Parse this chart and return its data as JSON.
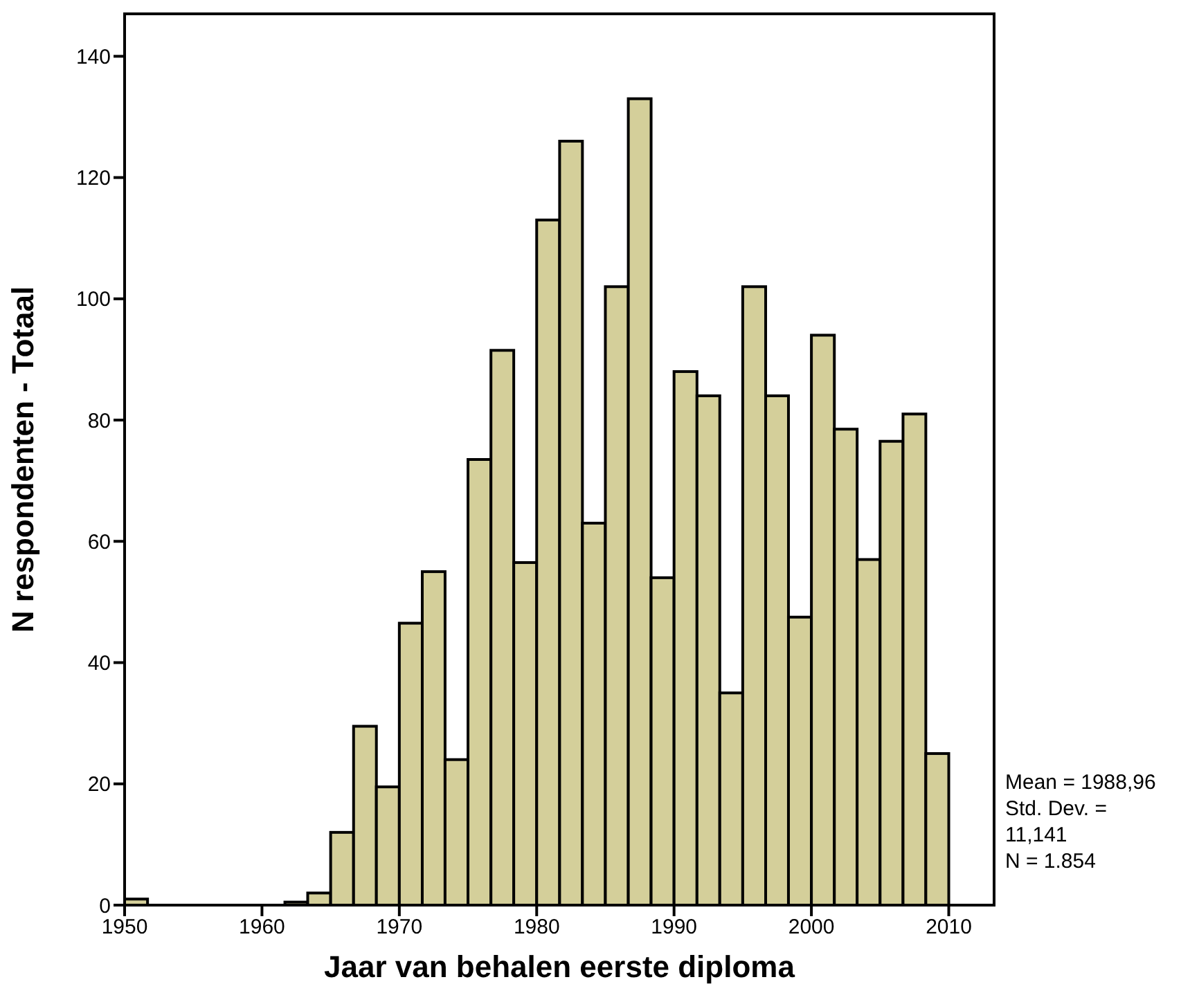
{
  "chart_data": {
    "type": "histogram",
    "xlabel": "Jaar van behalen eerste diploma",
    "ylabel": "N respondenten - Totaal",
    "bins": [
      1950,
      1951.67,
      1953.33,
      1955,
      1956.67,
      1958.33,
      1960,
      1961.67,
      1963.33,
      1965,
      1966.67,
      1968.33,
      1970,
      1971.67,
      1973.33,
      1975,
      1976.67,
      1978.33,
      1980,
      1981.67,
      1983.33,
      1985,
      1986.67,
      1988.33,
      1990,
      1991.67,
      1993.33,
      1995,
      1996.67,
      1998.33,
      2000,
      2001.67,
      2003.33,
      2005,
      2006.67,
      2008.33,
      2010
    ],
    "values": [
      1,
      0,
      0,
      0,
      0,
      0,
      0,
      0.5,
      2,
      12,
      29.5,
      19.5,
      46.5,
      55,
      24,
      73.5,
      91.5,
      56.5,
      113,
      126,
      63,
      102,
      133,
      54,
      88,
      84,
      35,
      102,
      84,
      47.5,
      94,
      78.5,
      57,
      76.5,
      81,
      25
    ],
    "color": "#d4cf9a",
    "xlim": [
      1950,
      2013.3
    ],
    "xticks": [
      1950,
      1960,
      1970,
      1980,
      1990,
      2000,
      2010
    ],
    "ylim": [
      0,
      147
    ],
    "yticks": [
      0,
      20,
      40,
      60,
      80,
      100,
      120,
      140
    ],
    "grid": false,
    "annotations": [
      "Mean = 1988,96",
      "Std. Dev. = 11,141",
      "N = 1.854"
    ]
  }
}
